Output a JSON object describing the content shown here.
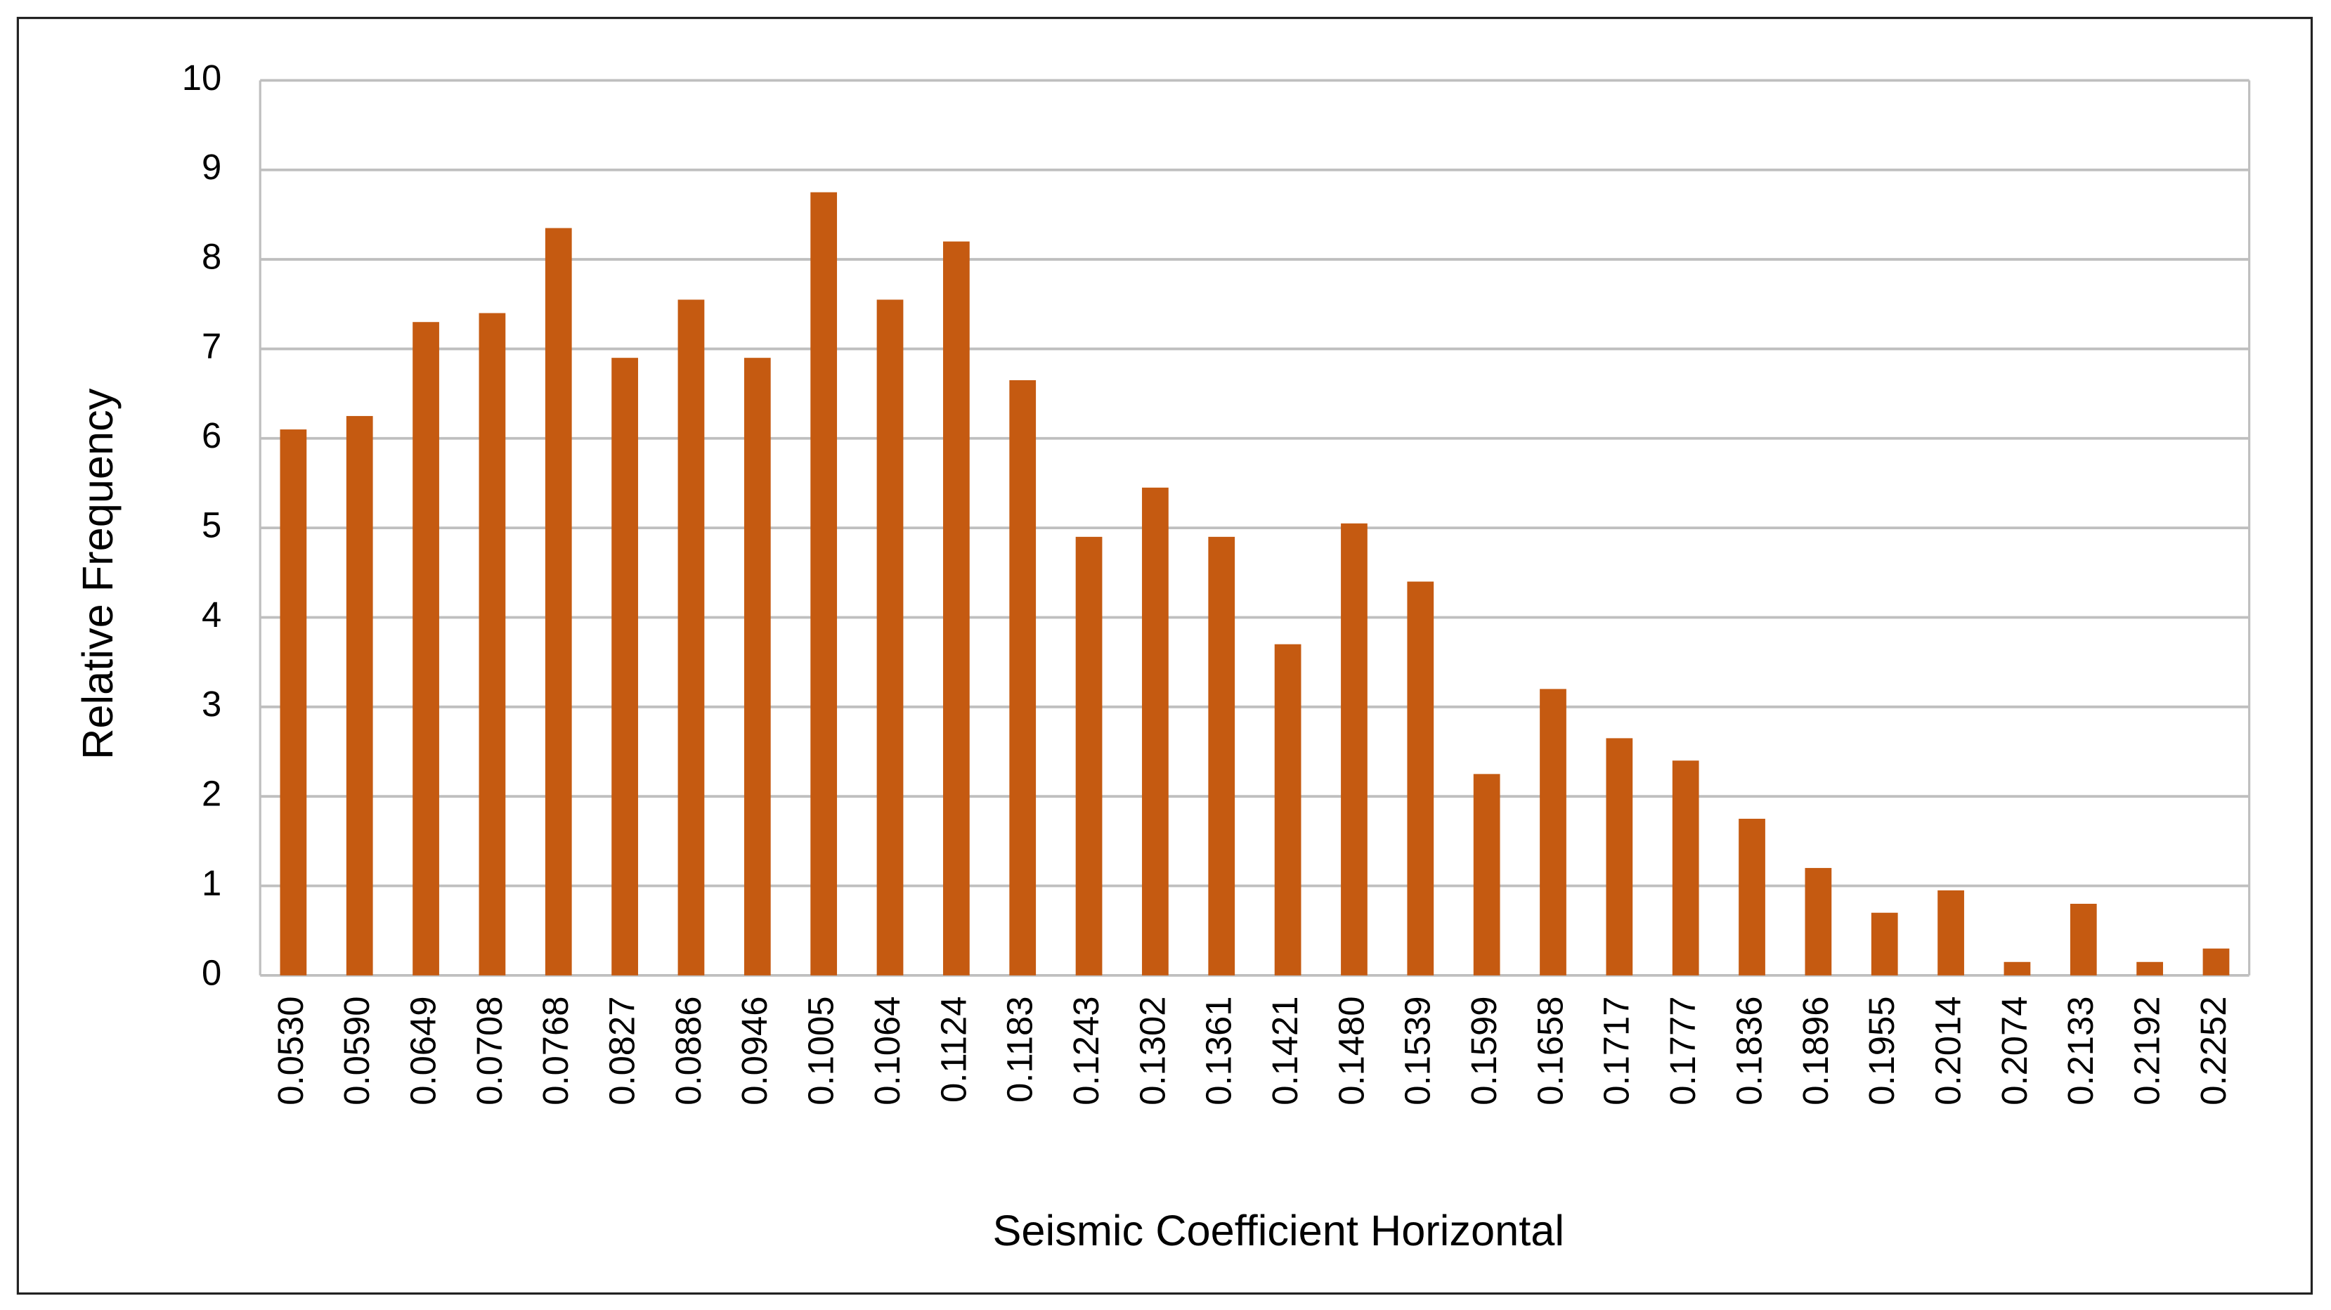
{
  "chart_data": {
    "type": "bar",
    "x_label": "Seismic Coefficient Horizontal",
    "y_label": "Relative Frequency",
    "categories": [
      "0.0530",
      "0.0590",
      "0.0649",
      "0.0708",
      "0.0768",
      "0.0827",
      "0.0886",
      "0.0946",
      "0.1005",
      "0.1064",
      "0.1124",
      "0.1183",
      "0.1243",
      "0.1302",
      "0.1361",
      "0.1421",
      "0.1480",
      "0.1539",
      "0.1599",
      "0.1658",
      "0.1717",
      "0.1777",
      "0.1836",
      "0.1896",
      "0.1955",
      "0.2014",
      "0.2074",
      "0.2133",
      "0.2192",
      "0.2252"
    ],
    "values": [
      6.1,
      6.25,
      7.3,
      7.4,
      8.35,
      6.9,
      7.55,
      6.9,
      8.75,
      7.55,
      8.2,
      6.65,
      4.9,
      5.45,
      4.9,
      3.7,
      5.05,
      4.4,
      2.25,
      3.2,
      2.65,
      2.4,
      1.75,
      1.2,
      0.7,
      0.95,
      0.15,
      0.8,
      0.15,
      0.3
    ],
    "color": "#c55a11",
    "ylim": [
      0,
      10
    ],
    "yticks": [
      0,
      1,
      2,
      3,
      4,
      5,
      6,
      7,
      8,
      9,
      10
    ],
    "grid": true
  }
}
